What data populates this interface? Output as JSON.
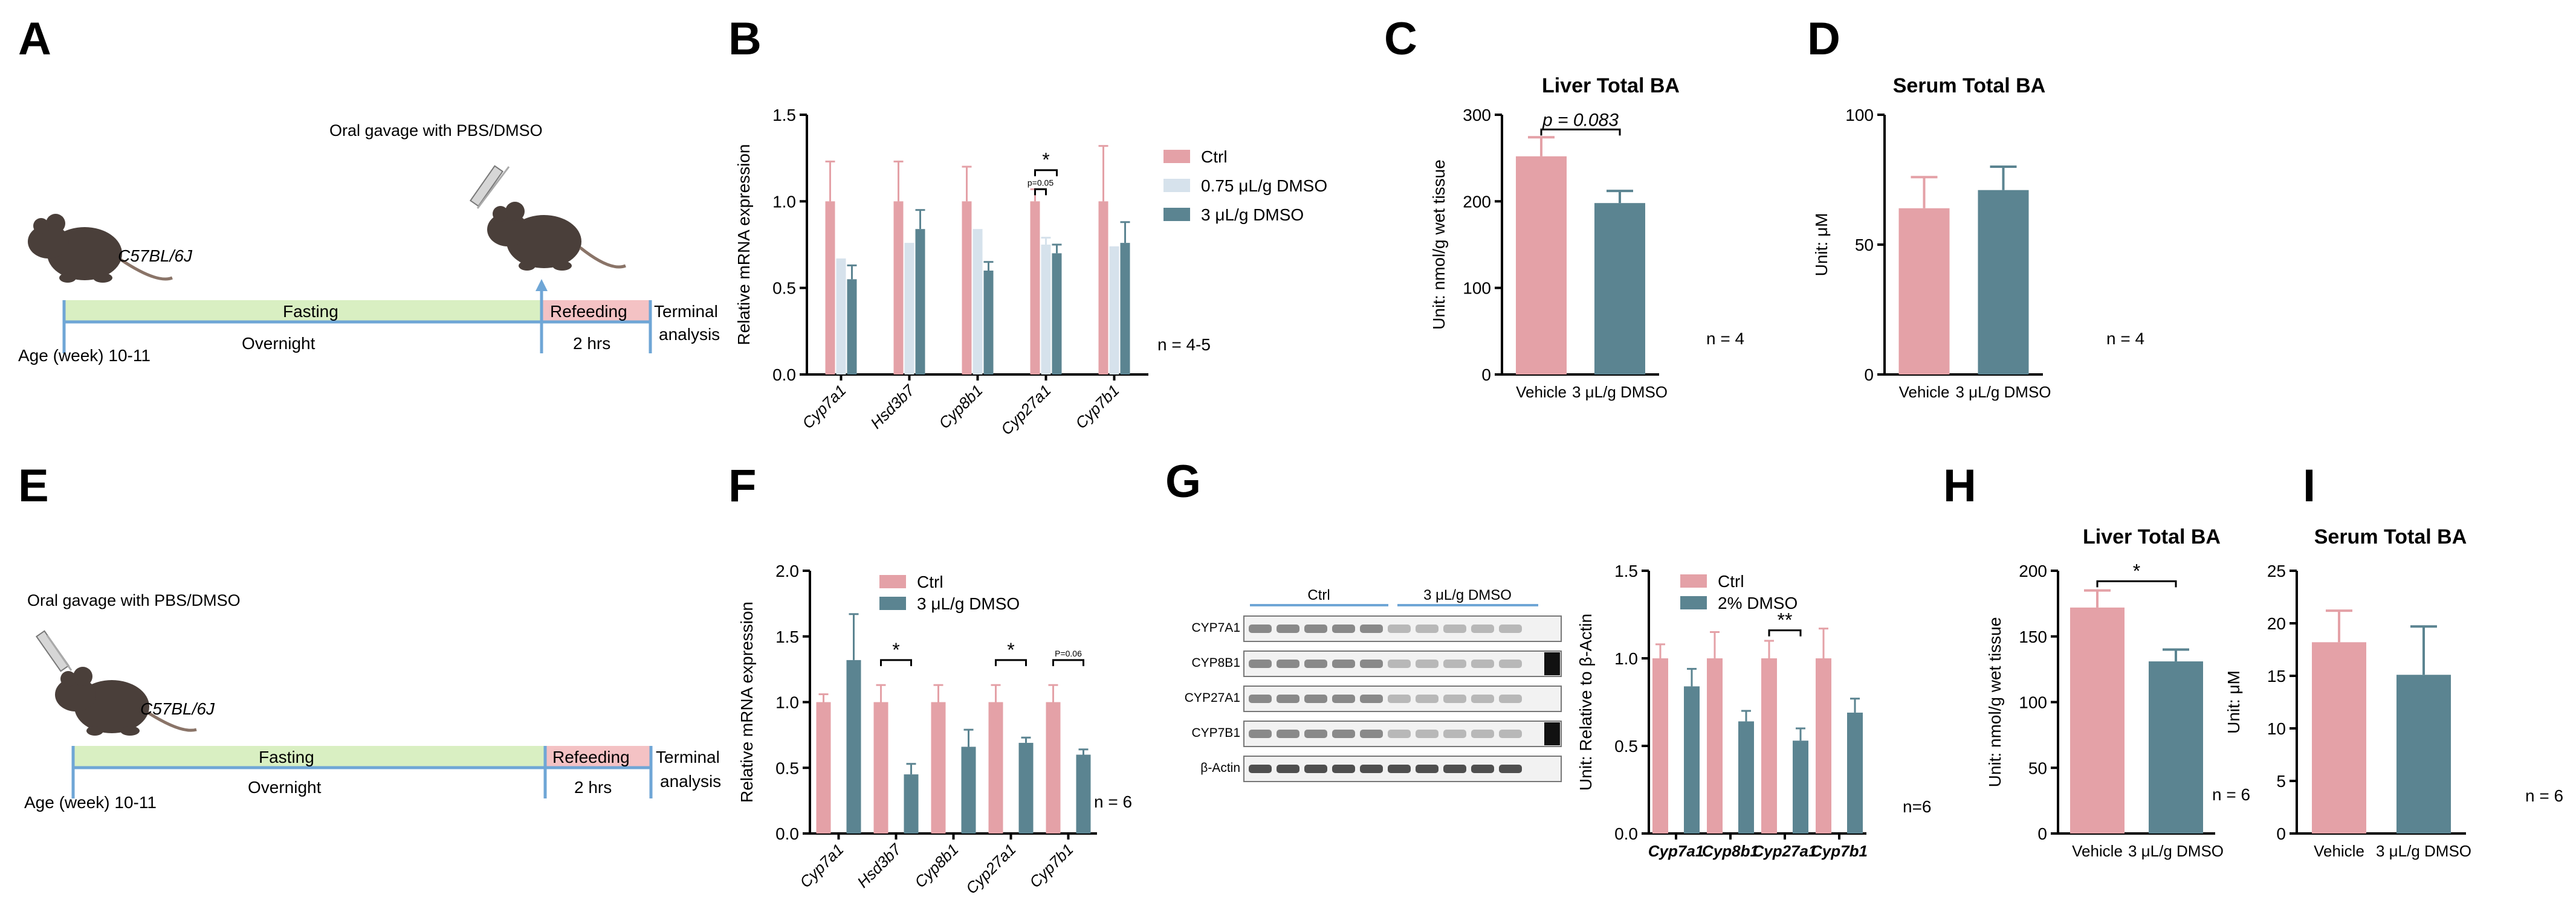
{
  "colors": {
    "ctrl": "#E4A1A7",
    "dmso_low": "#D6E2EC",
    "dmso": "#5B8491",
    "fasting": "#D9EFC2",
    "refeeding": "#F4C2C4",
    "timeline": "#6FA6D6",
    "mouse": "#4A3F3A"
  },
  "panels": {
    "A": {
      "letter": "A",
      "gavage": "Oral gavage with PBS/DMSO",
      "strain": "C57BL/6J",
      "fasting": "Fasting",
      "overnight": "Overnight",
      "refeeding": "Refeeding",
      "hrs": "2 hrs",
      "terminal1": "Terminal",
      "terminal2": "analysis",
      "age": "Age (week) 10-11"
    },
    "E": {
      "letter": "E",
      "gavage": "Oral gavage with PBS/DMSO",
      "strain": "C57BL/6J",
      "fasting": "Fasting",
      "overnight": "Overnight",
      "refeeding": "Refeeding",
      "hrs": "2 hrs",
      "terminal1": "Terminal",
      "terminal2": "analysis",
      "age": "Age (week) 10-11"
    },
    "G_blot": {
      "letter": "G",
      "group1": "Ctrl",
      "group2": "3 μL/g DMSO",
      "proteins": [
        "CYP7A1",
        "CYP8B1",
        "CYP27A1",
        "CYP7B1",
        "β-Actin"
      ]
    }
  },
  "chart_data": [
    {
      "id": "B",
      "letter": "B",
      "type": "bar",
      "ylabel": "Relative mRNA expression",
      "ylim": [
        0,
        1.5
      ],
      "yticks": [
        "0.0",
        "0.5",
        "1.0",
        "1.5"
      ],
      "categories": [
        "Cyp7a1",
        "Hsd3b7",
        "Cyp8b1",
        "Cyp27a1",
        "Cyp7b1"
      ],
      "series": [
        {
          "name": "Ctrl",
          "color": "ctrl",
          "values": [
            1.0,
            1.0,
            1.0,
            1.0,
            1.0
          ],
          "errors": [
            0.23,
            0.23,
            0.2,
            0.07,
            0.32
          ]
        },
        {
          "name": "0.75 μL/g DMSO",
          "color": "dmso_low",
          "values": [
            0.67,
            0.76,
            0.84,
            0.75,
            0.74
          ],
          "errors": [
            0.0,
            0.0,
            0.0,
            0.04,
            0.0
          ]
        },
        {
          "name": "3 μL/g DMSO",
          "color": "dmso",
          "values": [
            0.55,
            0.84,
            0.6,
            0.7,
            0.76
          ],
          "errors": [
            0.08,
            0.11,
            0.05,
            0.05,
            0.12
          ]
        }
      ],
      "annotations": [
        {
          "text": "*",
          "cat": 3,
          "from": 0,
          "to": 2,
          "y": 1.18
        },
        {
          "text": "p=0.05",
          "cat": 3,
          "from": 0,
          "to": 1,
          "y": 1.07
        }
      ],
      "n_label": "n = 4-5"
    },
    {
      "id": "C",
      "letter": "C",
      "type": "bar",
      "title": "Liver Total BA",
      "ylabel": "Unit: nmol/g wet tissue",
      "ylim": [
        0,
        300
      ],
      "yticks": [
        "0",
        "100",
        "200",
        "300"
      ],
      "categories": [
        "Vehicle",
        "3 μL/g DMSO"
      ],
      "values": [
        252,
        198
      ],
      "errors": [
        22,
        14
      ],
      "colors": [
        "ctrl",
        "dmso"
      ],
      "annotations": [
        {
          "text": "p = 0.083",
          "from": 0,
          "to": 1,
          "y": 283
        }
      ],
      "n_label": "n = 4"
    },
    {
      "id": "D",
      "letter": "D",
      "type": "bar",
      "title": "Serum Total BA",
      "ylabel": "Unit: μM",
      "ylim": [
        0,
        100
      ],
      "yticks": [
        "0",
        "50",
        "100"
      ],
      "categories": [
        "Vehicle",
        "3 μL/g DMSO"
      ],
      "values": [
        64,
        71
      ],
      "errors": [
        12,
        9
      ],
      "colors": [
        "ctrl",
        "dmso"
      ],
      "annotations": [],
      "n_label": "n = 4"
    },
    {
      "id": "F",
      "letter": "F",
      "type": "bar",
      "ylabel": "Relative mRNA expression",
      "ylim": [
        0,
        2.0
      ],
      "yticks": [
        "0.0",
        "0.5",
        "1.0",
        "1.5",
        "2.0"
      ],
      "categories": [
        "Cyp7a1",
        "Hsd3b7",
        "Cyp8b1",
        "Cyp27a1",
        "Cyp7b1"
      ],
      "series": [
        {
          "name": "Ctrl",
          "color": "ctrl",
          "values": [
            1.0,
            1.0,
            1.0,
            1.0,
            1.0
          ],
          "errors": [
            0.06,
            0.13,
            0.13,
            0.13,
            0.13
          ]
        },
        {
          "name": "3 μL/g DMSO",
          "color": "dmso",
          "values": [
            1.32,
            0.45,
            0.66,
            0.69,
            0.6
          ],
          "errors": [
            0.35,
            0.08,
            0.13,
            0.04,
            0.04
          ]
        }
      ],
      "annotations": [
        {
          "text": "*",
          "cat": 1,
          "from": 0,
          "to": 1,
          "y": 1.32
        },
        {
          "text": "*",
          "cat": 3,
          "from": 0,
          "to": 1,
          "y": 1.32
        },
        {
          "text": "P=0.06",
          "cat": 4,
          "from": 0,
          "to": 1,
          "y": 1.32
        }
      ],
      "n_label": "n = 6"
    },
    {
      "id": "G",
      "letter": "",
      "type": "bar",
      "ylabel": "Unit: Relative to β-Actin",
      "ylim": [
        0,
        1.5
      ],
      "yticks": [
        "0.0",
        "0.5",
        "1.0",
        "1.5"
      ],
      "categories": [
        "Cyp7a1",
        "Cyp8b1",
        "Cyp27a1",
        "Cyp7b1"
      ],
      "series": [
        {
          "name": "Ctrl",
          "color": "ctrl",
          "values": [
            1.0,
            1.0,
            1.0,
            1.0
          ],
          "errors": [
            0.08,
            0.15,
            0.1,
            0.17
          ]
        },
        {
          "name": "2% DMSO",
          "color": "dmso",
          "values": [
            0.84,
            0.64,
            0.53,
            0.69
          ],
          "errors": [
            0.1,
            0.06,
            0.07,
            0.08
          ]
        }
      ],
      "annotations": [
        {
          "text": "**",
          "cat": 2,
          "from": 0,
          "to": 1,
          "y": 1.16
        }
      ],
      "n_label": "n=6"
    },
    {
      "id": "H",
      "letter": "H",
      "type": "bar",
      "title": "Liver Total BA",
      "ylabel": "Unit: nmol/g wet tissue",
      "ylim": [
        0,
        200
      ],
      "yticks": [
        "0",
        "50",
        "100",
        "150",
        "200"
      ],
      "categories": [
        "Vehicle",
        "3 μL/g DMSO"
      ],
      "values": [
        172,
        131
      ],
      "errors": [
        13,
        9
      ],
      "colors": [
        "ctrl",
        "dmso"
      ],
      "annotations": [
        {
          "text": "*",
          "from": 0,
          "to": 1,
          "y": 192
        }
      ],
      "n_label": "n = 6"
    },
    {
      "id": "I",
      "letter": "I",
      "type": "bar",
      "title": "Serum Total BA",
      "ylabel": "Unit: μM",
      "ylim": [
        0,
        25
      ],
      "yticks": [
        "0",
        "5",
        "10",
        "15",
        "20",
        "25"
      ],
      "categories": [
        "Vehicle",
        "3 μL/g DMSO"
      ],
      "values": [
        18.2,
        15.1
      ],
      "errors": [
        3,
        4.6
      ],
      "colors": [
        "ctrl",
        "dmso"
      ],
      "annotations": [],
      "n_label": "n = 6"
    }
  ]
}
